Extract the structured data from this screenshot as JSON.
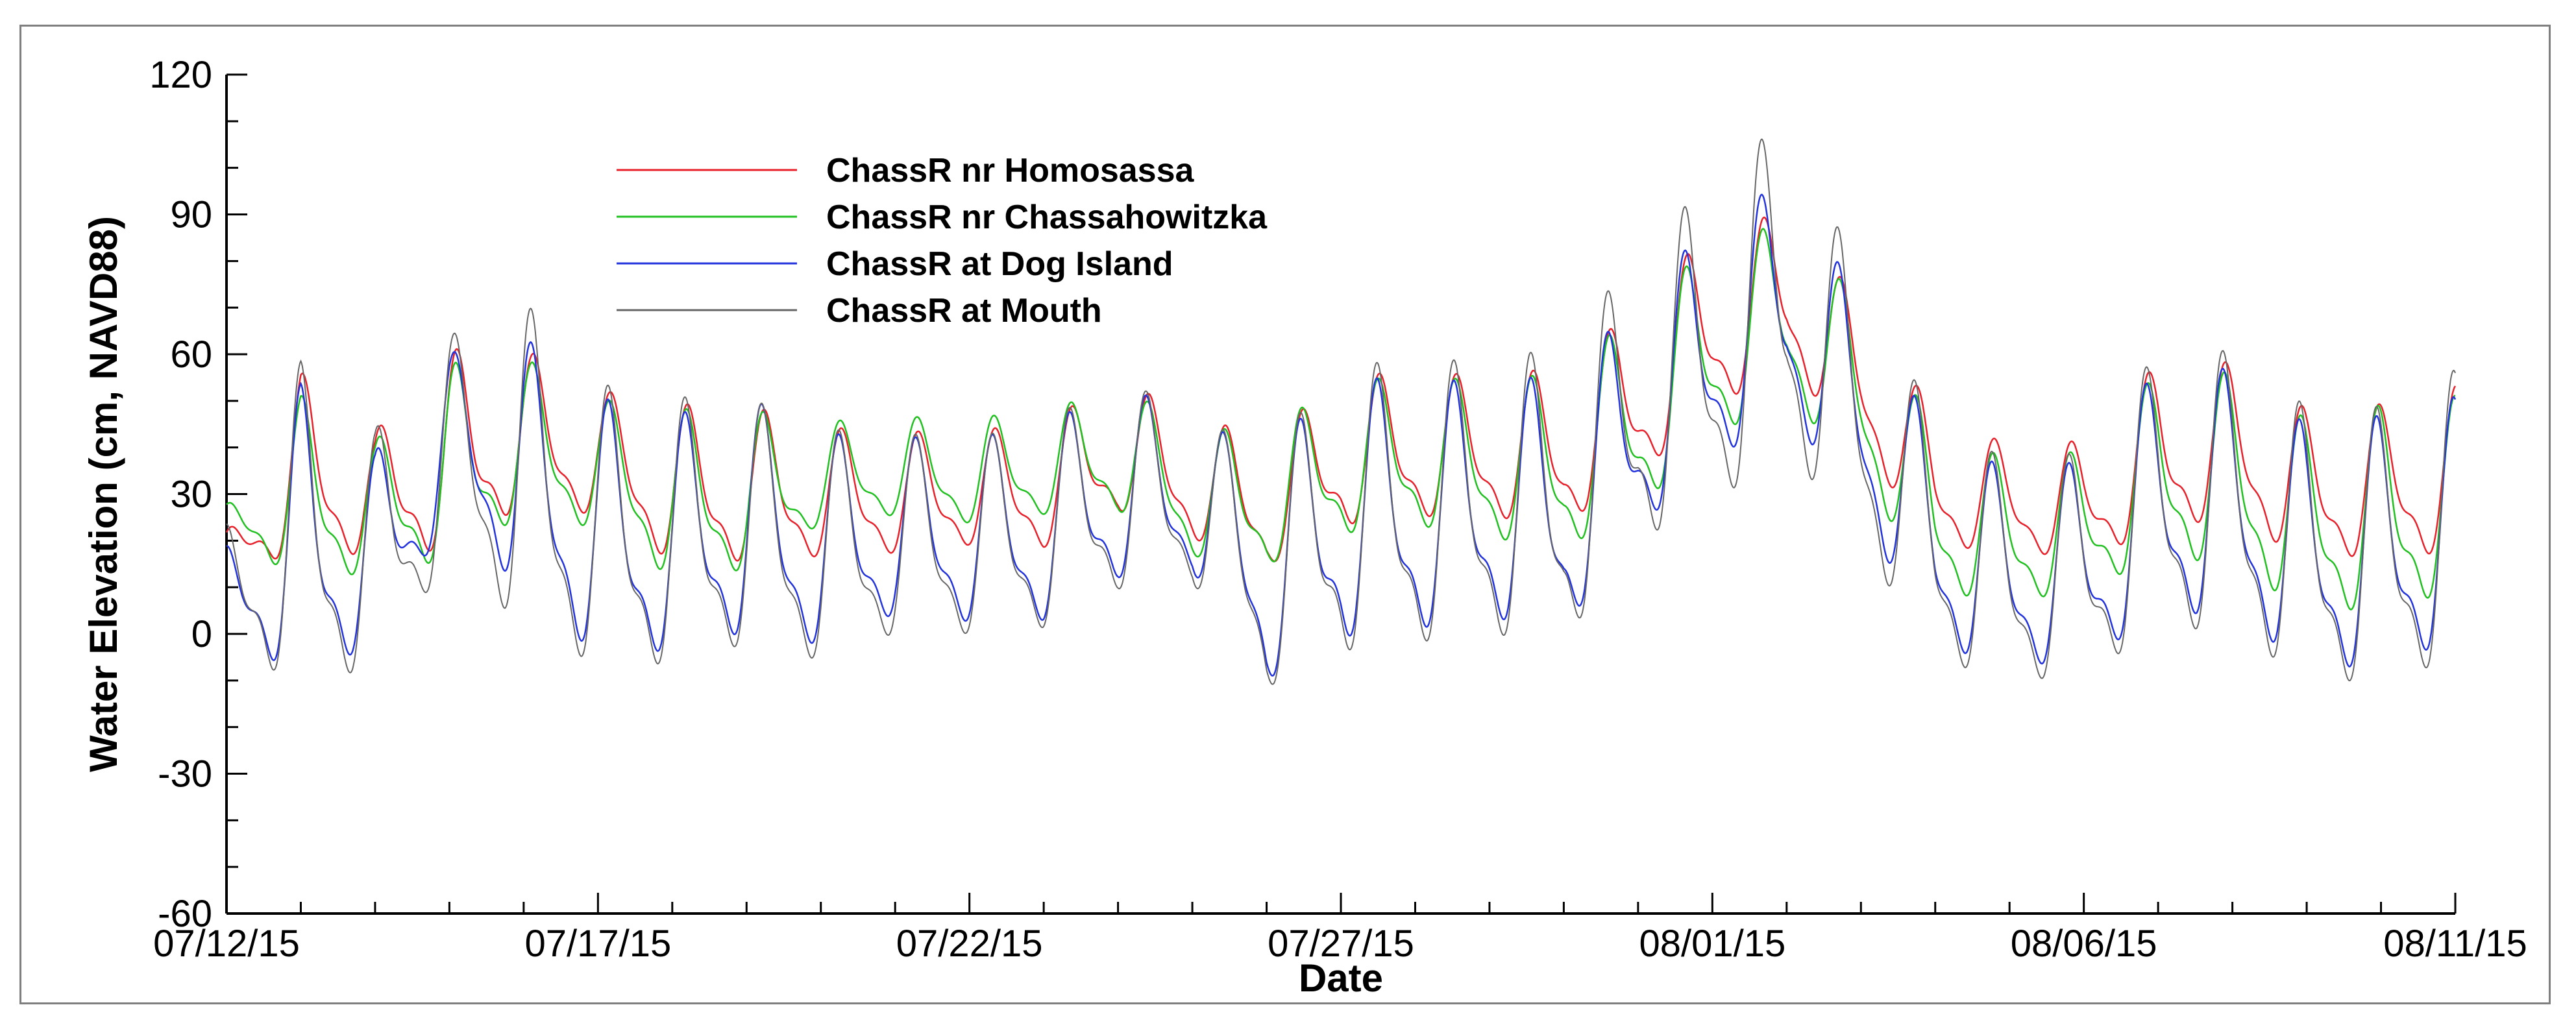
{
  "chart_data": {
    "type": "line",
    "title": "",
    "xlabel": "Date",
    "ylabel": "Water Elevation (cm, NAVD88)",
    "ylim": [
      -60,
      120
    ],
    "yticks": [
      -60,
      -30,
      0,
      30,
      60,
      90,
      120
    ],
    "xlim": [
      "07/12/15",
      "08/11/15"
    ],
    "xticks": [
      "07/12/15",
      "07/17/15",
      "07/22/15",
      "07/27/15",
      "08/01/15",
      "08/06/15",
      "08/11/15"
    ],
    "grid": false,
    "legend_position": "top-left",
    "x": [
      "07/12/15",
      "07/13/15",
      "07/14/15",
      "07/15/15",
      "07/16/15",
      "07/17/15",
      "07/18/15",
      "07/19/15",
      "07/20/15",
      "07/21/15",
      "07/22/15",
      "07/23/15",
      "07/24/15",
      "07/25/15",
      "07/26/15",
      "07/27/15",
      "07/28/15",
      "07/29/15",
      "07/30/15",
      "07/31/15",
      "08/01/15",
      "08/02/15",
      "08/03/15",
      "08/04/15",
      "08/05/15",
      "08/06/15",
      "08/07/15",
      "08/08/15",
      "08/09/15",
      "08/10/15",
      "08/11/15"
    ],
    "series": [
      {
        "name": "ChassR nr Homosassa",
        "color": "#e8202a",
        "daily_high": [
          22,
          57,
          44,
          62,
          62,
          53,
          50,
          50,
          45,
          44,
          44,
          46,
          55,
          48,
          42,
          56,
          57,
          56,
          58,
          71,
          88,
          91,
          72,
          48,
          41,
          42,
          59,
          59,
          49,
          50,
          54
        ],
        "daily_low": [
          10,
          12,
          12,
          11,
          22,
          21,
          10,
          10,
          12,
          13,
          15,
          14,
          22,
          16,
          10,
          18,
          20,
          20,
          18,
          28,
          42,
          52,
          35,
          14,
          14,
          12,
          16,
          20,
          10,
          12,
          11
        ]
      },
      {
        "name": "ChassR nr Chassahowitzka",
        "color": "#1fc01f",
        "daily_high": [
          28,
          52,
          42,
          59,
          60,
          51,
          49,
          49,
          46,
          47,
          47,
          48,
          54,
          45,
          44,
          55,
          56,
          55,
          57,
          70,
          85,
          89,
          72,
          45,
          38,
          40,
          57,
          57,
          47,
          50,
          52
        ],
        "daily_low": [
          18,
          6,
          8,
          9,
          20,
          18,
          6,
          8,
          20,
          22,
          20,
          22,
          22,
          12,
          10,
          16,
          18,
          15,
          12,
          20,
          35,
          45,
          28,
          3,
          2,
          4,
          10,
          8,
          -2,
          -2,
          2
        ]
      },
      {
        "name": "ChassR at Dog Island",
        "color": "#2233dd",
        "daily_high": [
          20,
          55,
          40,
          61,
          65,
          52,
          48,
          52,
          44,
          43,
          43,
          45,
          55,
          47,
          40,
          56,
          56,
          55,
          57,
          72,
          90,
          98,
          73,
          44,
          36,
          38,
          58,
          58,
          46,
          48,
          52
        ],
        "daily_low": [
          -6,
          -18,
          -10,
          20,
          0,
          -14,
          -12,
          -8,
          -10,
          -2,
          -4,
          -4,
          5,
          8,
          -18,
          -10,
          -8,
          -5,
          -8,
          15,
          28,
          40,
          18,
          -10,
          -14,
          -13,
          -5,
          -4,
          -16,
          -16,
          -10
        ]
      },
      {
        "name": "ChassR at Mouth",
        "color": "#666666",
        "daily_high": [
          25,
          60,
          45,
          65,
          73,
          55,
          52,
          52,
          45,
          44,
          43,
          46,
          56,
          48,
          40,
          59,
          60,
          60,
          63,
          83,
          99,
          112,
          78,
          47,
          38,
          40,
          62,
          62,
          50,
          50,
          58
        ],
        "daily_low": [
          -8,
          -22,
          -16,
          8,
          -10,
          -17,
          -16,
          -11,
          -14,
          -7,
          -7,
          -6,
          2,
          5,
          -20,
          -14,
          -12,
          -10,
          -12,
          10,
          16,
          28,
          10,
          -14,
          -18,
          -17,
          -9,
          -9,
          -20,
          -20,
          -16
        ]
      }
    ]
  }
}
